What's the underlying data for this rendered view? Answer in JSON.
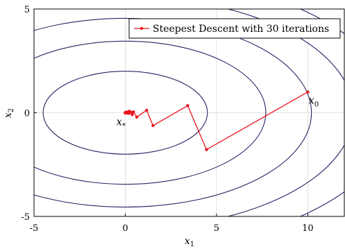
{
  "chart_data": {
    "type": "line",
    "title": "",
    "xlabel": "x",
    "xlabel_sub": "1",
    "ylabel": "x",
    "ylabel_sub": "2",
    "xlim": [
      -5,
      12
    ],
    "ylim": [
      -5,
      5
    ],
    "x_ticks": [
      -5,
      0,
      5,
      10
    ],
    "y_ticks": [
      -5,
      0,
      5
    ],
    "grid": true,
    "legend_placement": "top-right",
    "colors": {
      "series": "#e8141c",
      "contour": "#2d1f63",
      "grid": "#d9d9d9"
    },
    "contours": {
      "center": [
        0,
        0
      ],
      "semi_axes": [
        [
          4.5,
          2.0
        ],
        [
          7.7,
          3.45
        ],
        [
          10.2,
          4.55
        ],
        [
          12.5,
          5.6
        ],
        [
          14.7,
          6.6
        ]
      ]
    },
    "series": [
      {
        "name": "Steepest Descent with 30 iterations",
        "x": [
          10,
          4.45,
          3.42,
          1.52,
          1.17,
          0.63,
          0.45,
          0.38,
          0.3,
          0.22,
          0.2,
          0.16,
          0.13,
          0.1,
          0.08,
          0.06,
          0.05,
          0.04,
          0.03,
          0.02,
          0.02,
          0.01,
          0.01,
          0.01,
          0.0,
          0.0,
          0.0,
          0.0,
          0.0,
          0.0,
          0.0
        ],
        "y": [
          1.0,
          -1.78,
          0.34,
          -0.62,
          0.12,
          -0.21,
          0.04,
          -0.09,
          0.03,
          0.07,
          -0.03,
          0.04,
          -0.02,
          0.03,
          -0.01,
          0.02,
          -0.01,
          0.01,
          -0.01,
          0.01,
          0.0,
          0.01,
          0.0,
          0.0,
          0.0,
          0.0,
          0.0,
          0.0,
          0.0,
          0.0,
          0.0
        ]
      }
    ],
    "annotations": [
      {
        "text": "x",
        "sub": "0",
        "x": 10,
        "y": 1.0
      },
      {
        "text": "x",
        "sub": "*",
        "x": 0,
        "y": 0
      }
    ]
  }
}
